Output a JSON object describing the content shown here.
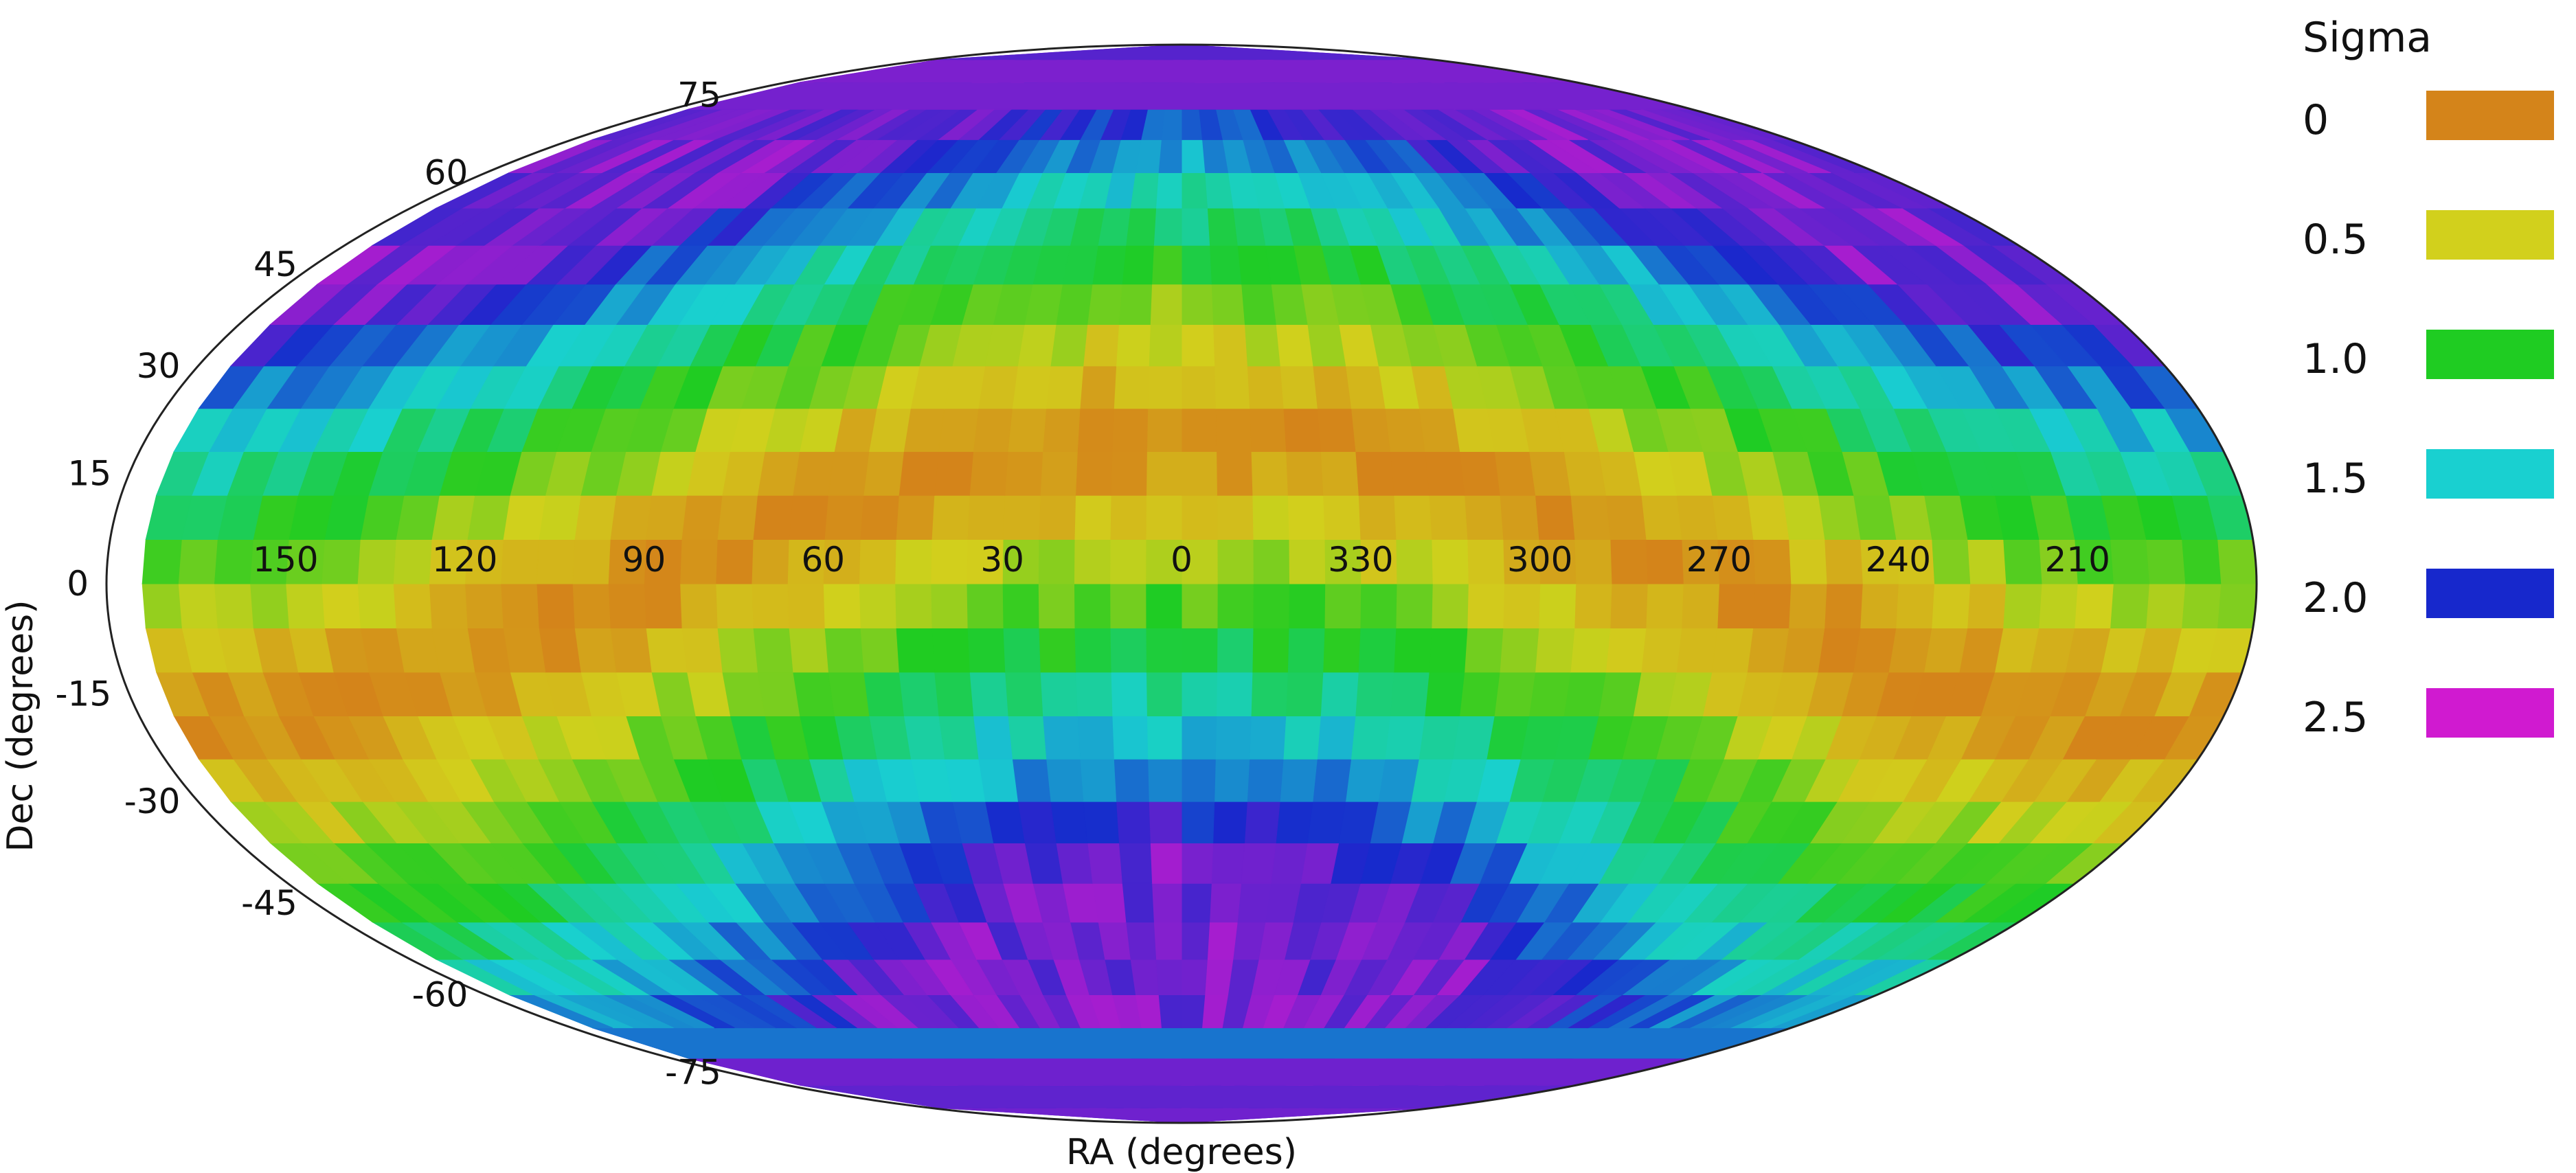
{
  "chart_data": {
    "type": "heatmap",
    "projection": "mollweide",
    "title": "",
    "xlabel": "RA (degrees)",
    "ylabel": "Dec (degrees)",
    "ra_tick_labels": [
      "210",
      "240",
      "270",
      "300",
      "330",
      "0",
      "30",
      "60",
      "90",
      "120",
      "150"
    ],
    "dec_tick_labels": [
      "75",
      "60",
      "45",
      "30",
      "15",
      "0",
      "-15",
      "-30",
      "-45",
      "-60",
      "-75"
    ],
    "ra_ticks": [
      210,
      240,
      270,
      300,
      330,
      0,
      30,
      60,
      90,
      120,
      150
    ],
    "dec_ticks": [
      75,
      60,
      45,
      30,
      15,
      0,
      -15,
      -30,
      -45,
      -60,
      -75
    ],
    "ra_range": [
      180,
      540
    ],
    "dec_range": [
      -90,
      90
    ],
    "ra_center": 0,
    "legend": {
      "title": "Sigma",
      "position": "right",
      "entries": [
        {
          "label": "0",
          "value": 0,
          "color": "#d4841a"
        },
        {
          "label": "0.5",
          "value": 0.5,
          "color": "#d2d01c"
        },
        {
          "label": "1.0",
          "value": 1.0,
          "color": "#1fcc22"
        },
        {
          "label": "1.5",
          "value": 1.5,
          "color": "#19d0d0"
        },
        {
          "label": "2.0",
          "value": 2.0,
          "color": "#1728cc"
        },
        {
          "label": "2.5",
          "value": 2.5,
          "color": "#d01ad0"
        }
      ]
    },
    "grid": false,
    "cell_size_deg": 6,
    "field_description_values": {
      "min_sigma_ring_center": {
        "ra": 0,
        "dec": -70
      },
      "min_sigma_ring_radius_deg": 90,
      "max_sigma_points": [
        {
          "ra": 0,
          "dec": -70
        },
        {
          "ra": 180,
          "dec": 70
        }
      ]
    }
  }
}
